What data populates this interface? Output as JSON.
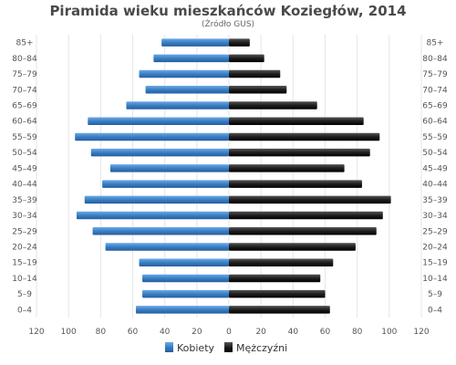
{
  "chart_data": {
    "type": "bar",
    "title": "Piramida wieku mieszkańców Koziegłów, 2014",
    "subtitle": "(Źródło  GUS)",
    "categories": [
      "0–4",
      "5–9",
      "10–14",
      "15–19",
      "20–24",
      "25–29",
      "30–34",
      "35–39",
      "40–44",
      "45–49",
      "50–54",
      "55–59",
      "60–64",
      "65–69",
      "70–74",
      "75–79",
      "80–84",
      "85+"
    ],
    "series": [
      {
        "name": "Kobiety",
        "color": "#3a7ec4",
        "values": [
          58,
          54,
          54,
          56,
          77,
          85,
          95,
          90,
          79,
          74,
          86,
          96,
          88,
          64,
          52,
          56,
          47,
          42
        ]
      },
      {
        "name": "Mężczyźni",
        "color": "#111111",
        "values": [
          63,
          60,
          57,
          65,
          79,
          92,
          96,
          101,
          83,
          72,
          88,
          94,
          84,
          55,
          36,
          32,
          22,
          13
        ]
      }
    ],
    "xlim": [
      -120,
      120
    ],
    "xticks": [
      -120,
      -100,
      -80,
      -60,
      -40,
      -20,
      0,
      20,
      40,
      60,
      80,
      100,
      120
    ],
    "xtick_labels": [
      "120",
      "100",
      "80",
      "60",
      "40",
      "20",
      "0",
      "20",
      "40",
      "60",
      "80",
      "100",
      "120"
    ],
    "grid": true,
    "legend_position": "bottom"
  }
}
